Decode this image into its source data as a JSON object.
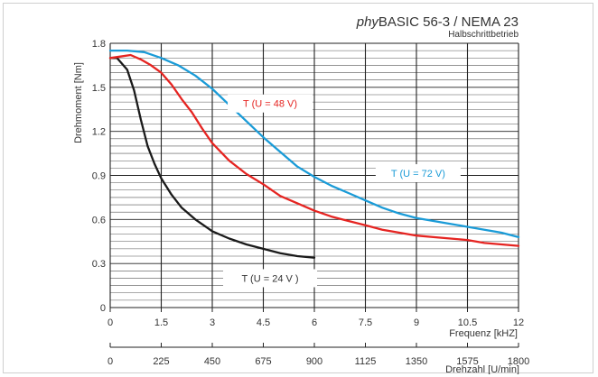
{
  "chart_data": {
    "type": "line",
    "title_prefix": "phy",
    "title_main": "BASIC 56-3 / NEMA 23",
    "subtitle": "Halbschrittbetrieb",
    "ylabel": "Drehmoment [Nm]",
    "xlabel": "Frequenz [kHZ]",
    "x2label": "Drehzahl [U/min]",
    "xlim": [
      0,
      12
    ],
    "ylim": [
      0,
      1.8
    ],
    "yticks": [
      "0",
      "0.3",
      "0.6",
      "0.9",
      "1.2",
      "1.5",
      "1.8"
    ],
    "xticks": [
      "0",
      "1.5",
      "3",
      "4.5",
      "6",
      "7.5",
      "9",
      "10.5",
      "12"
    ],
    "x2ticks": [
      "0",
      "225",
      "450",
      "675",
      "900",
      "1125",
      "1350",
      "1575",
      "1800"
    ],
    "grid": true,
    "series": [
      {
        "name": "T (U = 24 V )",
        "color": "#1a1a1a",
        "x": [
          0,
          0.2,
          0.5,
          0.7,
          0.9,
          1.1,
          1.3,
          1.5,
          1.8,
          2.1,
          2.5,
          3.0,
          3.5,
          4.0,
          4.5,
          5.0,
          5.5,
          6.0
        ],
        "y": [
          1.7,
          1.7,
          1.62,
          1.48,
          1.28,
          1.1,
          0.98,
          0.88,
          0.77,
          0.68,
          0.6,
          0.52,
          0.47,
          0.43,
          0.4,
          0.37,
          0.35,
          0.34
        ]
      },
      {
        "name": "T (U = 48 V)",
        "color": "#e52421",
        "x": [
          0,
          0.3,
          0.6,
          0.9,
          1.2,
          1.5,
          1.8,
          2.1,
          2.4,
          2.7,
          3.0,
          3.5,
          4.0,
          4.5,
          5.0,
          5.5,
          6.0,
          6.5,
          7.0,
          7.5,
          8.0,
          8.5,
          9.0,
          9.5,
          10.0,
          10.5,
          11.0,
          11.5,
          12.0
        ],
        "y": [
          1.7,
          1.71,
          1.72,
          1.69,
          1.65,
          1.6,
          1.52,
          1.42,
          1.33,
          1.22,
          1.12,
          1.0,
          0.91,
          0.84,
          0.76,
          0.71,
          0.66,
          0.62,
          0.59,
          0.56,
          0.53,
          0.51,
          0.49,
          0.48,
          0.47,
          0.46,
          0.44,
          0.43,
          0.42
        ]
      },
      {
        "name": "T (U = 72 V)",
        "color": "#1a9bd7",
        "x": [
          0,
          0.5,
          1.0,
          1.5,
          2.0,
          2.5,
          3.0,
          3.5,
          4.0,
          4.5,
          5.0,
          5.5,
          6.0,
          6.5,
          7.0,
          7.5,
          8.0,
          8.5,
          9.0,
          9.5,
          10.0,
          10.5,
          11.0,
          11.5,
          12.0
        ],
        "y": [
          1.75,
          1.75,
          1.74,
          1.7,
          1.65,
          1.58,
          1.49,
          1.38,
          1.27,
          1.16,
          1.06,
          0.96,
          0.89,
          0.83,
          0.78,
          0.73,
          0.68,
          0.64,
          0.61,
          0.59,
          0.57,
          0.55,
          0.53,
          0.51,
          0.48
        ]
      }
    ]
  }
}
